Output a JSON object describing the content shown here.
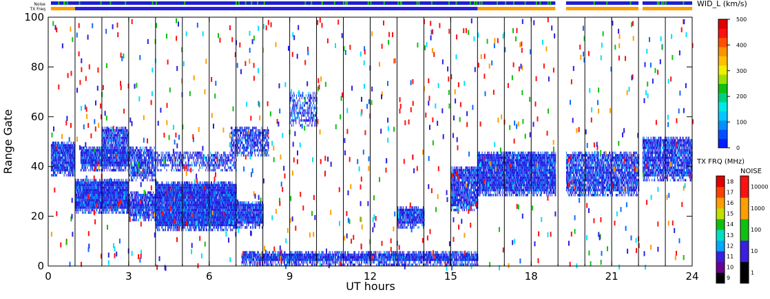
{
  "chart_data": {
    "type": "heatmap",
    "status_bars": {
      "noise_label": "Noise",
      "txfreq_label": "TX Freq"
    },
    "xlabel": "UT hours",
    "ylabel": "Range Gate",
    "xlim": [
      0,
      24
    ],
    "ylim": [
      0,
      100
    ],
    "x_ticks": [
      "0",
      "3",
      "6",
      "9",
      "12",
      "15",
      "18",
      "21",
      "24"
    ],
    "y_ticks": [
      "0",
      "20",
      "40",
      "60",
      "80",
      "100"
    ],
    "scan_boundaries_hours": [
      1,
      2,
      3,
      4,
      5,
      6,
      7,
      8,
      9,
      10,
      11,
      12,
      13,
      14,
      15,
      16,
      17,
      18,
      19,
      20,
      21,
      22,
      23
    ],
    "data_gaps_hours": [
      [
        18.9,
        19.3
      ],
      [
        22.0,
        22.15
      ]
    ],
    "echo_regions": [
      {
        "x": [
          0.1,
          1.0
        ],
        "y": [
          36,
          50
        ],
        "density": 0.9
      },
      {
        "x": [
          1.0,
          3.0
        ],
        "y": [
          21,
          35
        ],
        "density": 0.95
      },
      {
        "x": [
          1.2,
          3.0
        ],
        "y": [
          38,
          48
        ],
        "density": 0.9
      },
      {
        "x": [
          2.0,
          3.0
        ],
        "y": [
          46,
          56
        ],
        "density": 0.8
      },
      {
        "x": [
          3.0,
          4.0
        ],
        "y": [
          34,
          48
        ],
        "density": 0.7
      },
      {
        "x": [
          3.0,
          4.0
        ],
        "y": [
          18,
          30
        ],
        "density": 0.8
      },
      {
        "x": [
          4.0,
          7.0
        ],
        "y": [
          14,
          34
        ],
        "density": 0.97
      },
      {
        "x": [
          7.0,
          8.0
        ],
        "y": [
          15,
          26
        ],
        "density": 0.9
      },
      {
        "x": [
          6.8,
          8.2
        ],
        "y": [
          44,
          56
        ],
        "density": 0.6
      },
      {
        "x": [
          4.0,
          7.0
        ],
        "y": [
          38,
          46
        ],
        "density": 0.5
      },
      {
        "x": [
          7.2,
          16.0
        ],
        "y": [
          0,
          6
        ],
        "density": 0.9
      },
      {
        "x": [
          13.0,
          14.0
        ],
        "y": [
          15,
          24
        ],
        "density": 0.9
      },
      {
        "x": [
          15.0,
          16.0
        ],
        "y": [
          22,
          40
        ],
        "density": 0.8
      },
      {
        "x": [
          16.0,
          18.9
        ],
        "y": [
          28,
          46
        ],
        "density": 0.9
      },
      {
        "x": [
          19.3,
          22.0
        ],
        "y": [
          28,
          46
        ],
        "density": 0.75
      },
      {
        "x": [
          22.15,
          24.0
        ],
        "y": [
          34,
          52
        ],
        "density": 0.8
      },
      {
        "x": [
          9.0,
          10.0
        ],
        "y": [
          56,
          70
        ],
        "density": 0.4
      }
    ],
    "colorbar_width": {
      "title": "WID_L (km/s)",
      "ticks": [
        "0",
        "100",
        "200",
        "300",
        "400",
        "500"
      ],
      "range": [
        0,
        500
      ]
    },
    "colorbar_freq": {
      "title": "TX FRQ (MHz)",
      "ticks": [
        "9",
        "10",
        "11",
        "12",
        "13",
        "14",
        "15",
        "16",
        "17",
        "18"
      ]
    },
    "colorbar_noise": {
      "title": "NOISE",
      "ticks": [
        "1",
        "10",
        "100",
        "1000",
        "10000"
      ]
    },
    "colors": {
      "echo_main": "#2a1fe0",
      "noise_bar": "#1f1fcf",
      "noise_tick": "#19c019",
      "txfreq_orange": "#ff9e00",
      "txfreq_blue": "#2a1fe0",
      "axis": "#000000"
    }
  }
}
